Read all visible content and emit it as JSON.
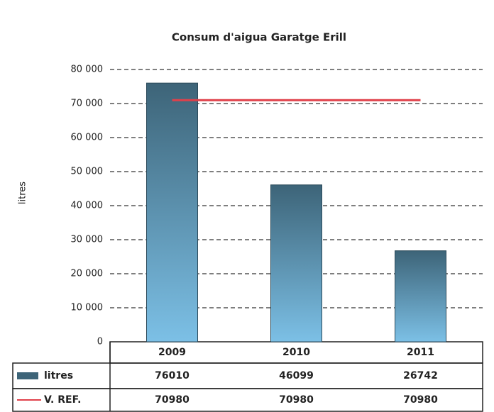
{
  "chart_data": {
    "type": "bar",
    "title": "Consum d'aigua Garatge Erill",
    "y_label": "litres",
    "categories": [
      "2009",
      "2010",
      "2011"
    ],
    "series": [
      {
        "name": "litres",
        "type": "bar",
        "color": "#3d6478",
        "values": [
          76010,
          46099,
          26742
        ]
      },
      {
        "name": "V. REF.",
        "type": "line",
        "color": "#e0404a",
        "values": [
          70980,
          70980,
          70980
        ]
      }
    ],
    "ylim": [
      0,
      80000
    ],
    "yticks": [
      0,
      {
        "value": 10000,
        "label": "10 000"
      },
      {
        "value": 20000,
        "label": "20 000"
      },
      {
        "value": 30000,
        "label": "30 000"
      },
      {
        "value": 40000,
        "label": "40 000"
      },
      {
        "value": 50000,
        "label": "50 000"
      },
      {
        "value": 60000,
        "label": "60 000"
      },
      {
        "value": 70000,
        "label": "70 000"
      },
      {
        "value": 80000,
        "label": "80 000"
      }
    ],
    "grid": true
  }
}
